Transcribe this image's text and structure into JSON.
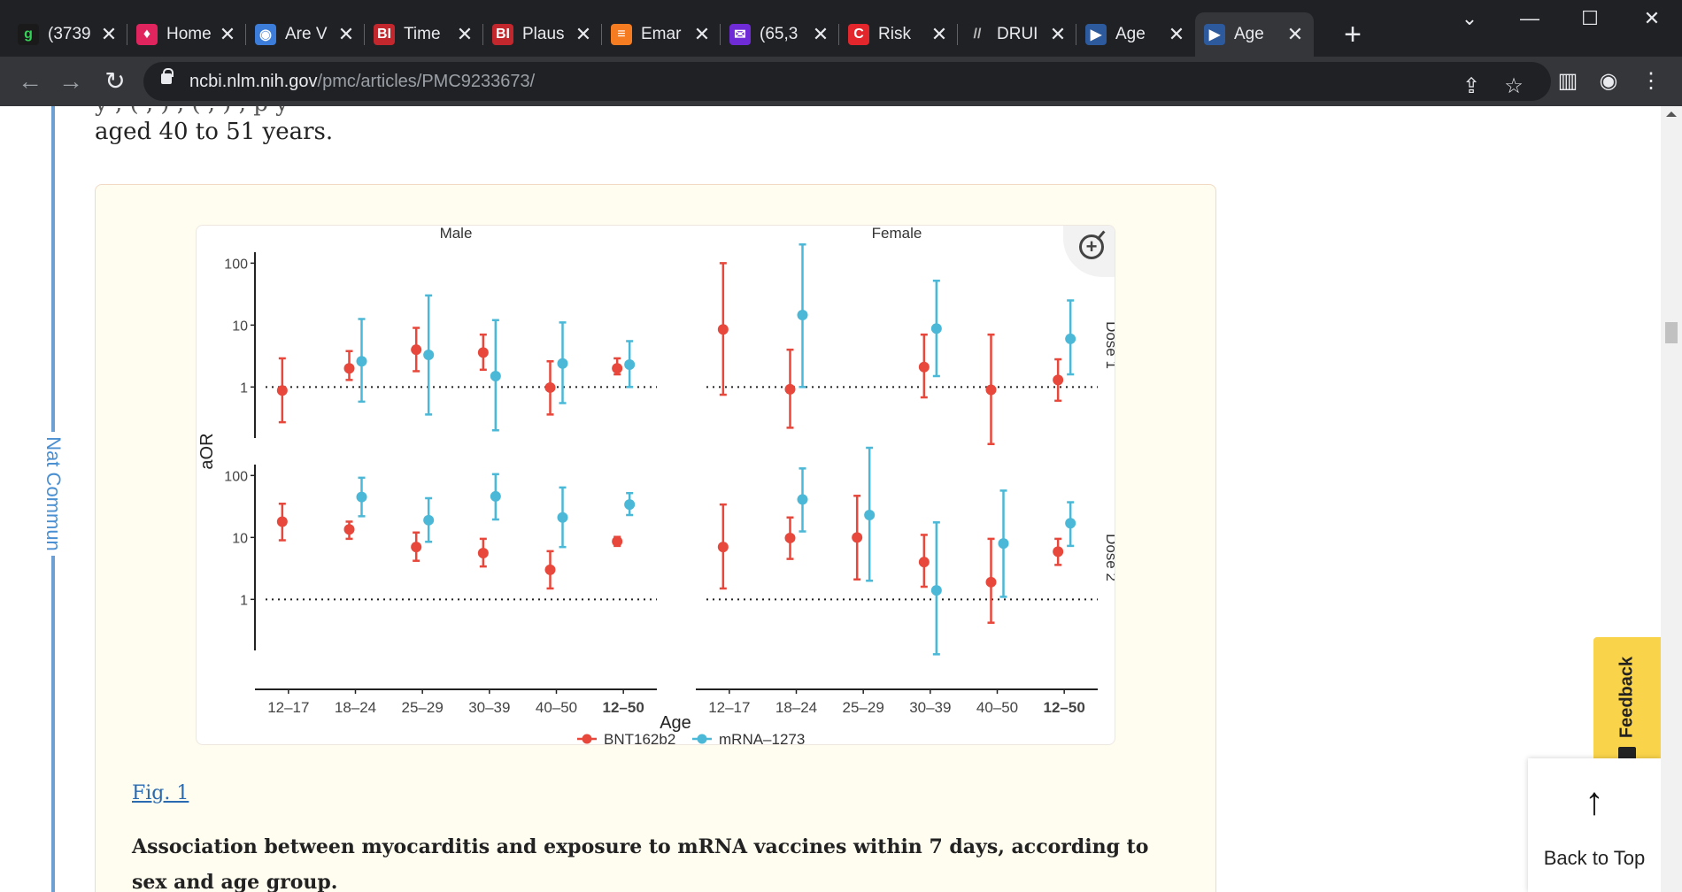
{
  "tabs": [
    {
      "title": "(3739",
      "favicon_text": "g",
      "favicon_color": "#1a1a1a",
      "favicon_fg": "#34d058"
    },
    {
      "title": "Home",
      "favicon_text": "♦",
      "favicon_color": "#e0245e",
      "favicon_fg": "#ffffff"
    },
    {
      "title": "Are V",
      "favicon_text": "◉",
      "favicon_color": "#3b7dd8",
      "favicon_fg": "#ffffff"
    },
    {
      "title": "Time",
      "favicon_text": "BI",
      "favicon_color": "#c1272d",
      "favicon_fg": "#ffffff"
    },
    {
      "title": "Plaus",
      "favicon_text": "BI",
      "favicon_color": "#c1272d",
      "favicon_fg": "#ffffff"
    },
    {
      "title": "Emar",
      "favicon_text": "≡",
      "favicon_color": "#f57c20",
      "favicon_fg": "#ffffff"
    },
    {
      "title": "(65,3",
      "favicon_text": "✉",
      "favicon_color": "#6f2cd6",
      "favicon_fg": "#ffffff"
    },
    {
      "title": "Risk",
      "favicon_text": "C",
      "favicon_color": "#e3262b",
      "favicon_fg": "#ffffff"
    },
    {
      "title": "DRUI",
      "favicon_text": "//",
      "favicon_color": "#202124",
      "favicon_fg": "#bbbbbb"
    },
    {
      "title": "Age",
      "favicon_text": "▶",
      "favicon_color": "#2c5a9c",
      "favicon_fg": "#ffffff"
    },
    {
      "title": "Age",
      "favicon_text": "▶",
      "favicon_color": "#2c5a9c",
      "favicon_fg": "#ffffff"
    }
  ],
  "active_tab": 10,
  "address": {
    "host": "ncbi.nlm.nih.gov",
    "path": "/pmc/articles/PMC9233673/"
  },
  "page": {
    "journal": "Nat Commun",
    "cut_line": "y  ,          (         ,          )  ,          (         ,         ) ,     p        y",
    "body_line": "aged 40 to 51 years.",
    "fig_link": "Fig. 1",
    "caption": "Association between myocarditis and exposure to mRNA vaccines within 7 days, according to sex and age group."
  },
  "widgets": {
    "feedback": "Feedback",
    "back_to_top": "Back to Top"
  },
  "chart_data": {
    "type": "scatter",
    "subtype": "point-range (odds ratio with 95% CI), log scale",
    "facets_col": [
      "Male",
      "Female"
    ],
    "facets_row": [
      "Dose 1",
      "Dose 2"
    ],
    "categories": [
      "12–17",
      "18–24",
      "25–29",
      "30–39",
      "40–50",
      "12–50"
    ],
    "xlabel": "Age",
    "ylabel": "aOR",
    "y_scale": "log10",
    "y_ticks": [
      1,
      10,
      100
    ],
    "reference_line": 1,
    "legend": [
      "BNT162b2",
      "mRNA–1273"
    ],
    "colors": {
      "BNT162b2": "#e8473b",
      "mRNA-1273": "#4ab8d6"
    },
    "panels": [
      {
        "sex": "Male",
        "dose": "Dose 1",
        "ylim": [
          0.15,
          150
        ],
        "series": [
          {
            "name": "BNT162b2",
            "points": [
              [
                0.88,
                0.27,
                2.9
              ],
              [
                2.0,
                1.3,
                3.8
              ],
              [
                4.0,
                1.8,
                9.0
              ],
              [
                3.6,
                1.9,
                7.0
              ],
              [
                0.98,
                0.36,
                2.6
              ],
              [
                2.0,
                1.6,
                2.9
              ]
            ]
          },
          {
            "name": "mRNA-1273",
            "points": [
              null,
              [
                2.6,
                0.58,
                12.5
              ],
              [
                3.3,
                0.36,
                30.0
              ],
              [
                1.5,
                0.2,
                12.0
              ],
              [
                2.4,
                0.55,
                11.0
              ],
              [
                2.3,
                1.0,
                5.5
              ]
            ]
          }
        ]
      },
      {
        "sex": "Female",
        "dose": "Dose 1",
        "ylim": [
          0.15,
          150
        ],
        "series": [
          {
            "name": "BNT162b2",
            "points": [
              [
                8.5,
                0.75,
                100.0
              ],
              [
                0.92,
                0.22,
                4.0
              ],
              null,
              [
                2.1,
                0.68,
                7.0
              ],
              [
                0.9,
                0.12,
                7.0
              ],
              [
                1.3,
                0.6,
                2.8
              ]
            ]
          },
          {
            "name": "mRNA-1273",
            "points": [
              null,
              [
                14.5,
                1.0,
                200.0
              ],
              null,
              [
                8.8,
                1.5,
                52.0
              ],
              null,
              [
                6.0,
                1.6,
                25.0
              ]
            ]
          }
        ]
      },
      {
        "sex": "Male",
        "dose": "Dose 2",
        "ylim": [
          0.15,
          150
        ],
        "series": [
          {
            "name": "BNT162b2",
            "points": [
              [
                18.0,
                9.0,
                35.0
              ],
              [
                13.5,
                9.5,
                18.0
              ],
              [
                7.0,
                4.2,
                12.0
              ],
              [
                5.6,
                3.4,
                9.5
              ],
              [
                3.0,
                1.5,
                6.0
              ],
              [
                8.6,
                7.3,
                10.2
              ]
            ]
          },
          {
            "name": "mRNA-1273",
            "points": [
              null,
              [
                45.0,
                22.0,
                92.0
              ],
              [
                19.0,
                8.5,
                43.0
              ],
              [
                46.0,
                19.5,
                105.0
              ],
              [
                21.0,
                7.0,
                64.0
              ],
              [
                34.0,
                23.0,
                52.0
              ]
            ]
          }
        ]
      },
      {
        "sex": "Female",
        "dose": "Dose 2",
        "ylim": [
          0.15,
          150
        ],
        "series": [
          {
            "name": "BNT162b2",
            "points": [
              [
                7.0,
                1.5,
                34.0
              ],
              [
                9.8,
                4.5,
                21.0
              ],
              [
                10.0,
                2.1,
                47.0
              ],
              [
                4.0,
                1.6,
                11.0
              ],
              [
                1.9,
                0.42,
                9.5
              ],
              [
                5.9,
                3.6,
                9.5
              ]
            ]
          },
          {
            "name": "mRNA-1273",
            "points": [
              null,
              [
                41.0,
                12.5,
                130.0
              ],
              [
                23.0,
                2.0,
                280.0
              ],
              [
                1.4,
                0.13,
                17.5
              ],
              [
                8.0,
                1.1,
                57.0
              ],
              [
                17.0,
                7.3,
                37.0
              ]
            ]
          }
        ]
      }
    ]
  }
}
